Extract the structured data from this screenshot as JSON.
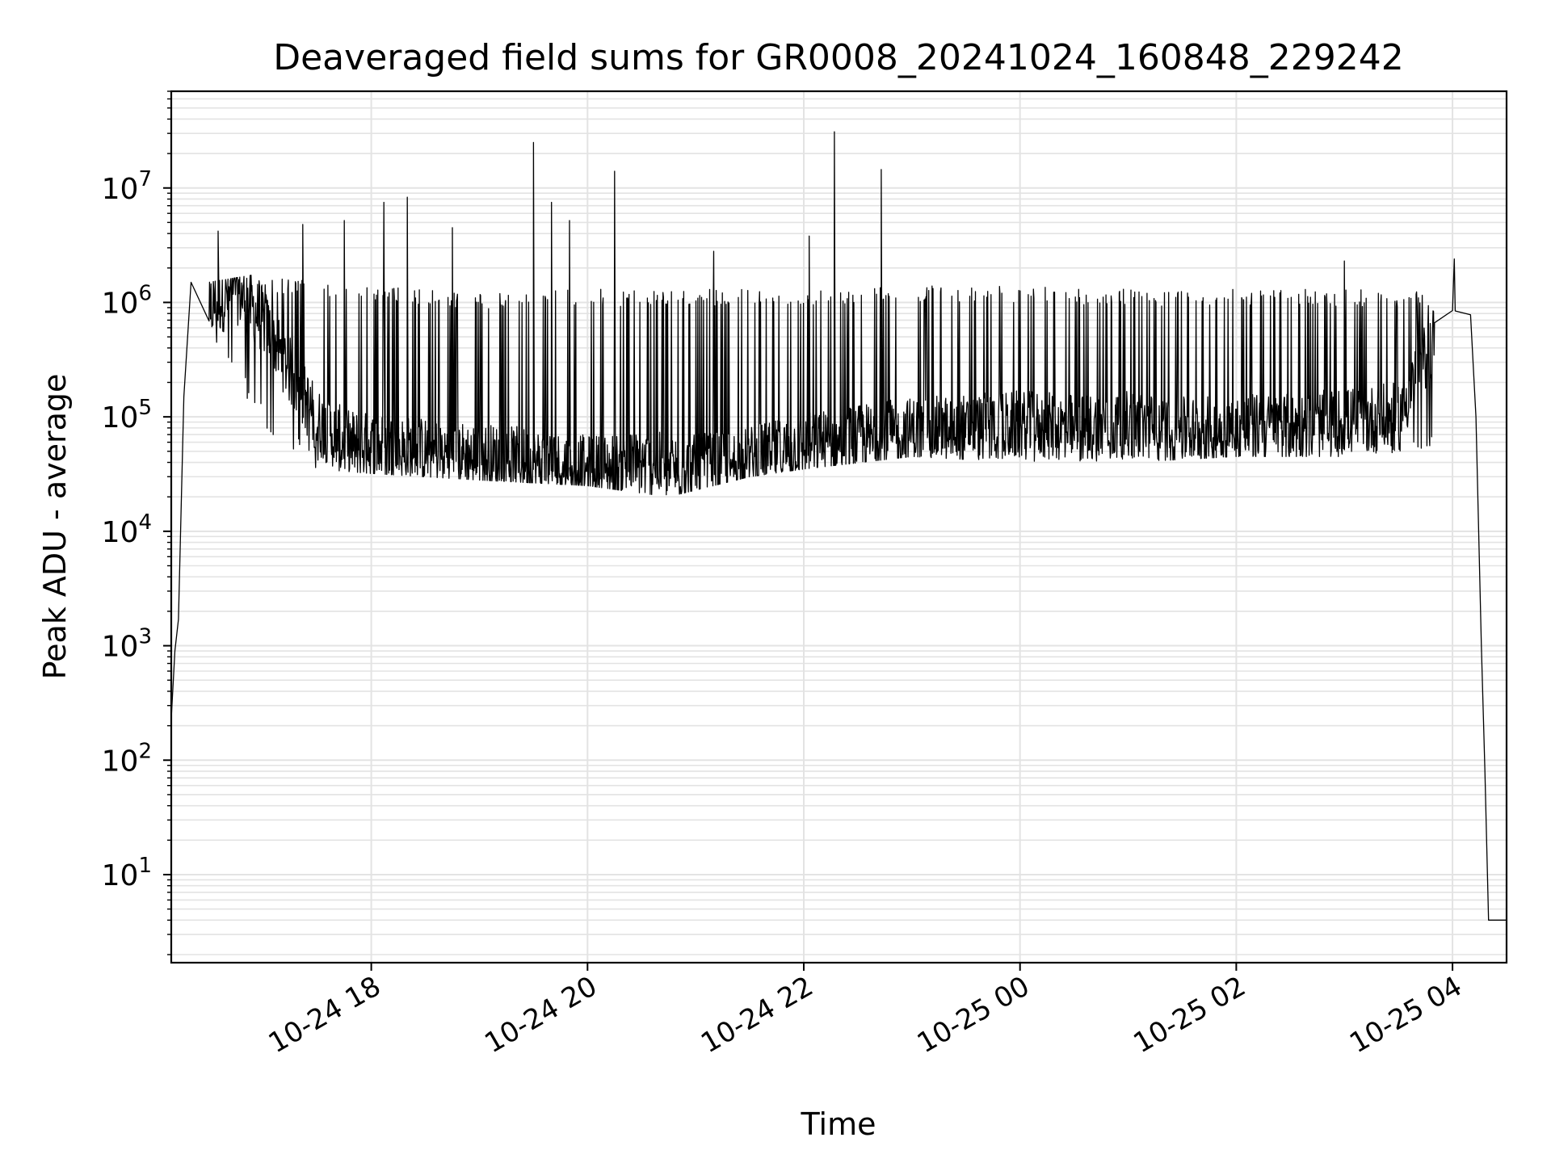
{
  "chart_data": {
    "type": "line",
    "title": "Deaveraged field sums for GR0008_20241024_160848_229242",
    "xlabel": "Time",
    "ylabel": "Peak ADU - average",
    "yscale": "log",
    "ylim": [
      1.7,
      70000000
    ],
    "xlim": [
      "2024-10-24 16:09",
      "2024-10-25 04:30"
    ],
    "grid": true,
    "line_color": "#000000",
    "x_ticks": [
      {
        "label": "10-24 18",
        "value": "2024-10-24 18:00"
      },
      {
        "label": "10-24 20",
        "value": "2024-10-24 20:00"
      },
      {
        "label": "10-24 22",
        "value": "2024-10-24 22:00"
      },
      {
        "label": "10-25 00",
        "value": "2024-10-25 00:00"
      },
      {
        "label": "10-25 02",
        "value": "2024-10-25 02:00"
      },
      {
        "label": "10-25 04",
        "value": "2024-10-25 04:00"
      }
    ],
    "y_ticks": [
      {
        "base": "10",
        "exp": "1",
        "value": 10
      },
      {
        "base": "10",
        "exp": "2",
        "value": 100
      },
      {
        "base": "10",
        "exp": "3",
        "value": 1000
      },
      {
        "base": "10",
        "exp": "4",
        "value": 10000
      },
      {
        "base": "10",
        "exp": "5",
        "value": 100000
      },
      {
        "base": "10",
        "exp": "6",
        "value": 1000000
      },
      {
        "base": "10",
        "exp": "7",
        "value": 10000000
      }
    ],
    "series": [
      {
        "values": [
          [
            "2024-10-24 16:09",
            230
          ],
          [
            "2024-10-24 16:11",
            900
          ],
          [
            "2024-10-24 16:13",
            1700
          ],
          [
            "2024-10-24 16:16",
            150000
          ],
          [
            "2024-10-24 16:20",
            1500000
          ],
          [
            "2024-10-24 16:30",
            900000
          ],
          [
            "2024-10-24 16:45",
            1300000
          ],
          [
            "2024-10-24 17:00",
            700000
          ],
          [
            "2024-10-24 17:15",
            250000
          ],
          [
            "2024-10-24 17:30",
            90000
          ],
          [
            "2024-10-24 17:45",
            60000
          ],
          [
            "2024-10-24 18:00",
            55000
          ],
          [
            "2024-10-24 18:30",
            50000
          ],
          [
            "2024-10-24 19:00",
            45000
          ],
          [
            "2024-10-24 19:30",
            40000
          ],
          [
            "2024-10-24 20:00",
            35000
          ],
          [
            "2024-10-24 20:30",
            38000
          ],
          [
            "2024-10-24 21:00",
            35000
          ],
          [
            "2024-10-24 21:30",
            42000
          ],
          [
            "2024-10-24 22:00",
            55000
          ],
          [
            "2024-10-24 22:30",
            65000
          ],
          [
            "2024-10-24 23:00",
            75000
          ],
          [
            "2024-10-24 23:30",
            80000
          ],
          [
            "2024-10-25 00:00",
            85000
          ],
          [
            "2024-10-25 00:30",
            80000
          ],
          [
            "2024-10-25 01:00",
            85000
          ],
          [
            "2024-10-25 01:30",
            75000
          ],
          [
            "2024-10-25 02:00",
            80000
          ],
          [
            "2024-10-25 02:30",
            80000
          ],
          [
            "2024-10-25 03:00",
            90000
          ],
          [
            "2024-10-25 03:30",
            100000
          ],
          [
            "2024-10-25 03:50",
            500000
          ],
          [
            "2024-10-25 04:00",
            850000
          ],
          [
            "2024-10-25 04:10",
            780000
          ],
          [
            "2024-10-25 04:13",
            100000
          ],
          [
            "2024-10-25 04:16",
            1000
          ],
          [
            "2024-10-25 04:18",
            80
          ],
          [
            "2024-10-25 04:20",
            4
          ],
          [
            "2024-10-25 04:30",
            4
          ]
        ],
        "envelope_high": [
          [
            "2024-10-24 16:30",
            1500000
          ],
          [
            "2024-10-24 17:00",
            1800000
          ],
          [
            "2024-10-24 17:30",
            1500000
          ],
          [
            "2024-10-24 18:00",
            1400000
          ],
          [
            "2024-10-24 19:00",
            1200000
          ],
          [
            "2024-10-24 20:00",
            1300000
          ],
          [
            "2024-10-24 21:00",
            1300000
          ],
          [
            "2024-10-24 22:00",
            1300000
          ],
          [
            "2024-10-24 23:00",
            1400000
          ],
          [
            "2024-10-25 00:00",
            1400000
          ],
          [
            "2024-10-25 01:00",
            1300000
          ],
          [
            "2024-10-25 02:00",
            1300000
          ],
          [
            "2024-10-25 03:00",
            1300000
          ],
          [
            "2024-10-25 03:50",
            1300000
          ]
        ],
        "envelope_low": [
          [
            "2024-10-24 16:30",
            500000
          ],
          [
            "2024-10-24 17:00",
            80000
          ],
          [
            "2024-10-24 17:30",
            35000
          ],
          [
            "2024-10-24 18:00",
            32000
          ],
          [
            "2024-10-24 19:00",
            28000
          ],
          [
            "2024-10-24 20:00",
            25000
          ],
          [
            "2024-10-24 20:45",
            20000
          ],
          [
            "2024-10-24 21:30",
            30000
          ],
          [
            "2024-10-24 22:00",
            35000
          ],
          [
            "2024-10-24 23:00",
            45000
          ],
          [
            "2024-10-25 00:00",
            40000
          ],
          [
            "2024-10-25 01:00",
            40000
          ],
          [
            "2024-10-25 02:00",
            45000
          ],
          [
            "2024-10-25 03:00",
            45000
          ],
          [
            "2024-10-25 03:50",
            50000
          ]
        ],
        "spikes": [
          [
            "2024-10-24 16:35",
            4200000
          ],
          [
            "2024-10-24 17:22",
            4800000
          ],
          [
            "2024-10-24 17:45",
            5200000
          ],
          [
            "2024-10-24 18:07",
            7500000
          ],
          [
            "2024-10-24 18:20",
            8300000
          ],
          [
            "2024-10-24 18:45",
            4500000
          ],
          [
            "2024-10-24 19:30",
            25000000
          ],
          [
            "2024-10-24 19:40",
            7500000
          ],
          [
            "2024-10-24 19:50",
            5200000
          ],
          [
            "2024-10-24 20:15",
            14000000
          ],
          [
            "2024-10-24 21:10",
            2800000
          ],
          [
            "2024-10-24 22:03",
            3800000
          ],
          [
            "2024-10-24 22:17",
            31000000
          ],
          [
            "2024-10-24 22:43",
            14500000
          ],
          [
            "2024-10-25 03:00",
            2300000
          ],
          [
            "2024-10-25 04:01",
            2400000
          ]
        ]
      }
    ]
  }
}
